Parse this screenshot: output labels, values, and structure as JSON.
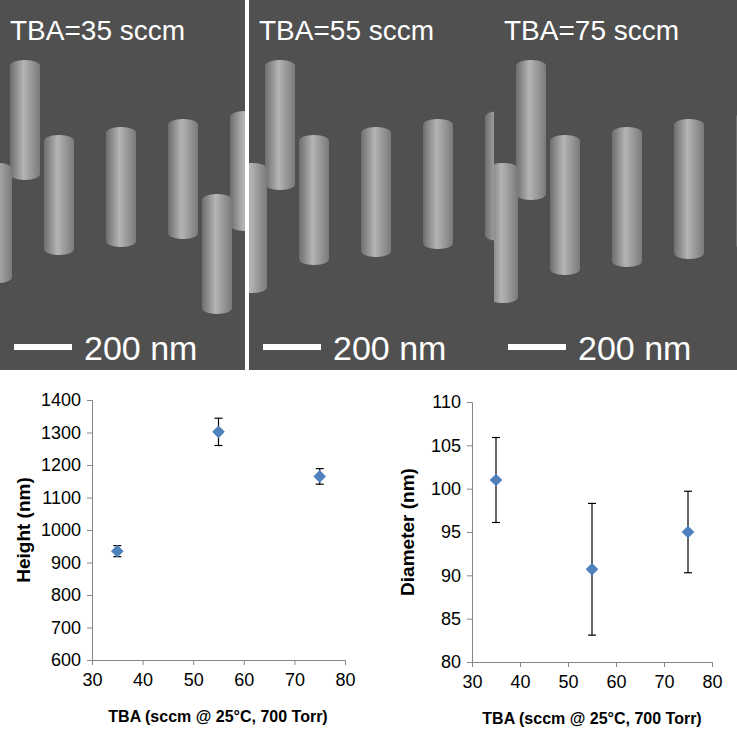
{
  "images": [
    {
      "label": "TBA=35 sccm",
      "scale_bar": "200 nm"
    },
    {
      "label": "TBA=55 sccm",
      "scale_bar": "200 nm"
    },
    {
      "label": "TBA=75 sccm",
      "scale_bar": "200 nm"
    }
  ],
  "chart_data": [
    {
      "type": "scatter",
      "x_label": "TBA (sccm @ 25°C, 700 Torr)",
      "y_label": "Height (nm)",
      "x": [
        35,
        55,
        75
      ],
      "values": [
        935,
        1302,
        1165
      ],
      "errors": [
        17,
        42,
        24
      ],
      "color": "#4f81bd",
      "marker": "diamond",
      "grid": false,
      "xlim": [
        30,
        80
      ],
      "xticks": [
        30,
        40,
        50,
        60,
        70,
        80
      ],
      "ylim": [
        600,
        1400
      ],
      "yticks": [
        600,
        700,
        800,
        900,
        1000,
        1100,
        1200,
        1300,
        1400
      ]
    },
    {
      "type": "scatter",
      "x_label": "TBA (sccm @ 25°C, 700 Torr)",
      "y_label": "Diameter (nm)",
      "x": [
        35,
        55,
        75
      ],
      "values": [
        101,
        90.7,
        95
      ],
      "errors": [
        4.9,
        7.6,
        4.7
      ],
      "color": "#4f81bd",
      "marker": "diamond",
      "grid": false,
      "xlim": [
        30,
        80
      ],
      "xticks": [
        30,
        40,
        50,
        60,
        70,
        80
      ],
      "ylim": [
        80,
        110
      ],
      "yticks": [
        80,
        85,
        90,
        95,
        100,
        105,
        110
      ]
    }
  ]
}
